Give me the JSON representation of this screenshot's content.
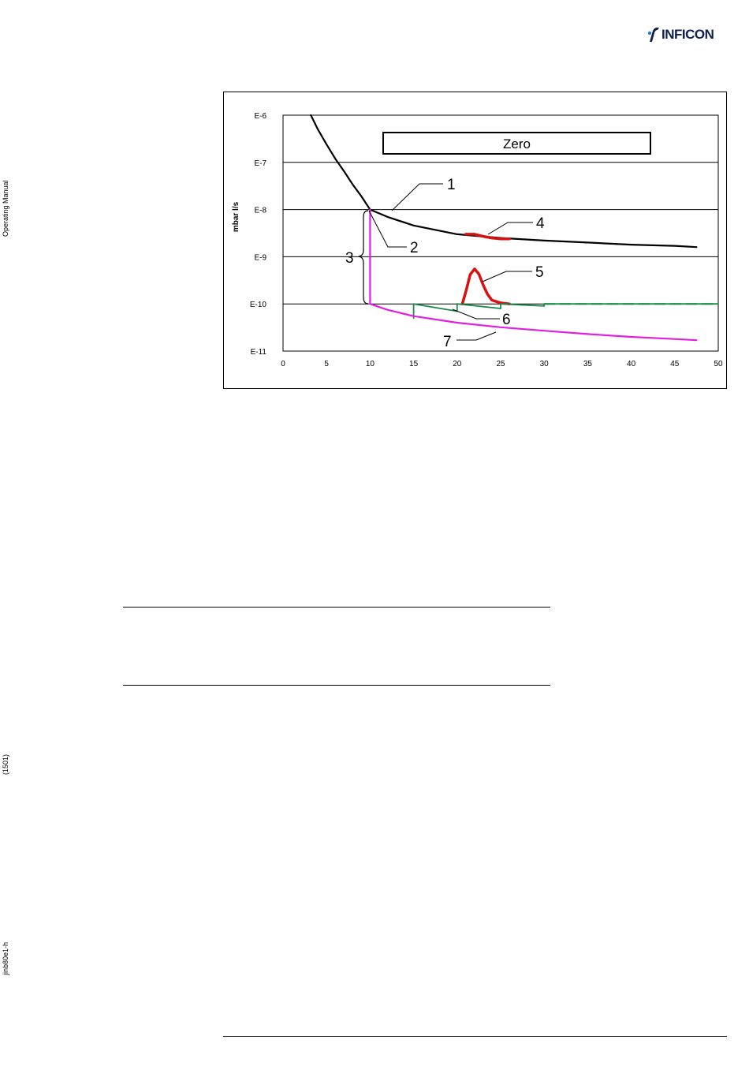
{
  "header": {
    "brand": "INFICON"
  },
  "sidebar": {
    "label_manual": "Operating Manual",
    "label_code": "(1501)",
    "label_doc": "jinb80e1-h"
  },
  "figure": {
    "zero_label": "Zero",
    "callouts": [
      "1",
      "2",
      "3",
      "4",
      "5",
      "6",
      "7"
    ]
  },
  "chart_data": {
    "type": "line",
    "ylabel": "mbar l/s",
    "y_scale": "log",
    "ylim": [
      1e-11,
      1e-06
    ],
    "xlim": [
      0,
      50
    ],
    "x_ticks": [
      "0",
      "5",
      "10",
      "15",
      "20",
      "25",
      "30",
      "35",
      "40",
      "45",
      "50"
    ],
    "y_ticks": [
      "E-6",
      "E-7",
      "E-8",
      "E-9",
      "E-10",
      "E-11"
    ],
    "grid": "horizontal",
    "colors": {
      "black": "#000000",
      "magenta": "#e020e0",
      "red": "#d81010",
      "green": "#1a8a4a"
    },
    "series": [
      {
        "id": "1",
        "color": "black",
        "x": [
          3.2,
          4,
          5,
          6,
          7,
          8,
          9,
          10,
          12,
          15,
          20,
          25,
          30,
          35,
          40,
          45,
          47.5
        ],
        "y": [
          1e-06,
          5e-07,
          2.4e-07,
          1.2e-07,
          6.5e-08,
          3.4e-08,
          1.9e-08,
          1e-08,
          7e-09,
          4.6e-09,
          3e-09,
          2.5e-09,
          2.2e-09,
          2e-09,
          1.8e-09,
          1.7e-09,
          1.6e-09
        ]
      },
      {
        "id": "4",
        "color": "red",
        "x": [
          21,
          22,
          23,
          24,
          25,
          26
        ],
        "y": [
          3e-09,
          3e-09,
          2.7e-09,
          2.5e-09,
          2.4e-09,
          2.4e-09
        ]
      },
      {
        "id": "5",
        "color": "red",
        "x": [
          20.6,
          21,
          21.5,
          22,
          22.5,
          23,
          23.5,
          24,
          25,
          26
        ],
        "y": [
          1e-10,
          1.8e-10,
          4.2e-10,
          5.5e-10,
          4.3e-10,
          2.5e-10,
          1.6e-10,
          1.2e-10,
          1.05e-10,
          1e-10
        ]
      },
      {
        "id": "6",
        "color": "green",
        "x": [
          15,
          15,
          20,
          20,
          25,
          25,
          30,
          30,
          50
        ],
        "y": [
          5e-11,
          1e-10,
          7e-11,
          1e-10,
          8e-11,
          1e-10,
          9e-11,
          1e-10,
          1e-10
        ]
      },
      {
        "id": "7",
        "color": "magenta",
        "x": [
          10,
          10,
          12,
          15,
          20,
          25,
          30,
          35,
          40,
          45,
          47.5
        ],
        "y": [
          1e-08,
          1e-10,
          7.5e-11,
          5.5e-11,
          4e-11,
          3.2e-11,
          2.7e-11,
          2.3e-11,
          2e-11,
          1.8e-11,
          1.7e-11
        ]
      }
    ]
  }
}
